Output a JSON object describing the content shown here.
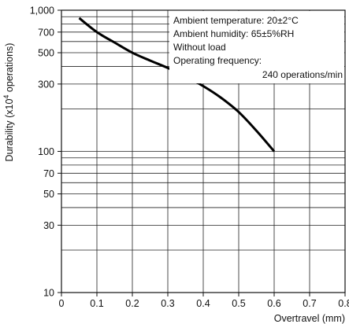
{
  "chart_data": {
    "type": "line",
    "xlabel": "Overtravel (mm)",
    "ylabel_prefix": "Durability (x10",
    "ylabel_exponent": "4",
    "ylabel_suffix": " operations)",
    "xlim": [
      0,
      0.8
    ],
    "ylim": [
      10,
      1000
    ],
    "y_scale": "log",
    "grid": true,
    "x_ticks": [
      "0",
      "0.1",
      "0.2",
      "0.3",
      "0.4",
      "0.5",
      "0.6",
      "0.7",
      "0.8"
    ],
    "y_ticks": [
      {
        "value": 10,
        "label": "10"
      },
      {
        "value": 30,
        "label": "30"
      },
      {
        "value": 50,
        "label": "50"
      },
      {
        "value": 70,
        "label": "70"
      },
      {
        "value": 100,
        "label": "100"
      },
      {
        "value": 300,
        "label": "300"
      },
      {
        "value": 500,
        "label": "500"
      },
      {
        "value": 700,
        "label": "700"
      },
      {
        "value": 1000,
        "label": "1,000"
      }
    ],
    "series": [
      {
        "x": [
          0.05,
          0.1,
          0.15,
          0.2,
          0.25,
          0.3,
          0.35,
          0.4,
          0.45,
          0.5,
          0.55,
          0.6
        ],
        "values": [
          880,
          700,
          590,
          500,
          440,
          390,
          340,
          290,
          240,
          190,
          140,
          100
        ]
      }
    ],
    "annotations": [
      "Ambient temperature: 20±2°C",
      "Ambient humidity: 65±5%RH",
      "Without load",
      "Operating frequency:",
      "240 operations/min"
    ]
  }
}
